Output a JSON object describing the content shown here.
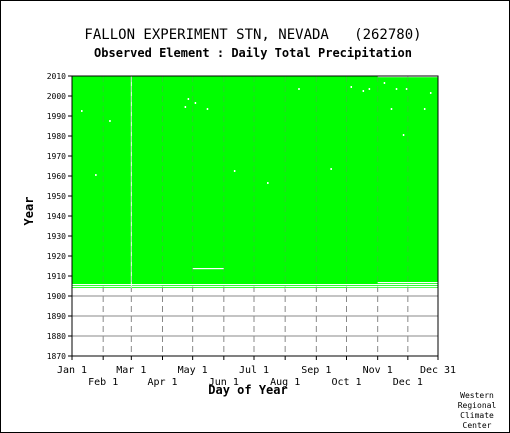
{
  "chart_data": {
    "type": "heatmap",
    "title": "FALLON EXPERIMENT STN, NEVADA   (262780)",
    "subtitle": "Observed Element : Daily Total Precipitation",
    "xlabel": "Day of Year",
    "ylabel": "Year",
    "ylim": [
      1870,
      2010
    ],
    "xlim_days": [
      1,
      365
    ],
    "yticks": [
      1870,
      1880,
      1890,
      1900,
      1910,
      1920,
      1930,
      1940,
      1950,
      1960,
      1970,
      1980,
      1990,
      2000,
      2010
    ],
    "xticks_top_row": [
      {
        "label": "Jan 1",
        "day": 1
      },
      {
        "label": "Mar 1",
        "day": 60
      },
      {
        "label": "May 1",
        "day": 121
      },
      {
        "label": "Jul 1",
        "day": 182
      },
      {
        "label": "Sep 1",
        "day": 244
      },
      {
        "label": "Nov 1",
        "day": 305
      },
      {
        "label": "Dec 31",
        "day": 365
      }
    ],
    "xticks_bottom_row": [
      {
        "label": "Feb 1",
        "day": 32
      },
      {
        "label": "Apr 1",
        "day": 91
      },
      {
        "label": "Jun 1",
        "day": 152
      },
      {
        "label": "Aug 1",
        "day": 213
      },
      {
        "label": "Oct 1",
        "day": 274
      },
      {
        "label": "Dec 1",
        "day": 335
      }
    ],
    "grid": true,
    "data_color": "#00ff00",
    "missing_color": "#ffffff",
    "series": [
      {
        "values": {
          "data_years": [
            1904,
            2009
          ],
          "missing_segments": [
            {
              "year": 1905,
              "start_day": 1,
              "end_day": 365
            },
            {
              "year": 1904,
              "start_day": 1,
              "end_day": 365
            },
            {
              "year": 1913,
              "start_day": 121,
              "end_day": 152
            },
            {
              "year": 1905,
              "start_day": 60,
              "end_day": 90
            },
            {
              "year": 1903,
              "start_day": 213,
              "end_day": 240
            },
            {
              "year": 2009,
              "start_day": 305,
              "end_day": 365
            },
            {
              "year": 1906,
              "start_day": 305,
              "end_day": 365
            },
            {
              "year": 1904,
              "start_day": 274,
              "end_day": 365
            }
          ],
          "missing_days": [
            {
              "year": 1960,
              "day": 24
            },
            {
              "year": 1987,
              "day": 38
            },
            {
              "year": 1994,
              "day": 113
            },
            {
              "year": 1998,
              "day": 116
            },
            {
              "year": 1996,
              "day": 123
            },
            {
              "year": 1993,
              "day": 135
            },
            {
              "year": 1962,
              "day": 162
            },
            {
              "year": 1956,
              "day": 195
            },
            {
              "year": 2003,
              "day": 226
            },
            {
              "year": 2004,
              "day": 278
            },
            {
              "year": 2002,
              "day": 290
            },
            {
              "year": 2003,
              "day": 296
            },
            {
              "year": 1993,
              "day": 318
            },
            {
              "year": 2003,
              "day": 323
            },
            {
              "year": 2003,
              "day": 333
            },
            {
              "year": 1993,
              "day": 351
            },
            {
              "year": 2001,
              "day": 357
            },
            {
              "year": 1963,
              "day": 258
            },
            {
              "year": 2006,
              "day": 311
            },
            {
              "year": 1992,
              "day": 10
            },
            {
              "year": 1980,
              "day": 330
            }
          ],
          "missing_column_day": 60
        }
      }
    ]
  },
  "credit": [
    "Western",
    "Regional",
    "Climate",
    "Center"
  ]
}
